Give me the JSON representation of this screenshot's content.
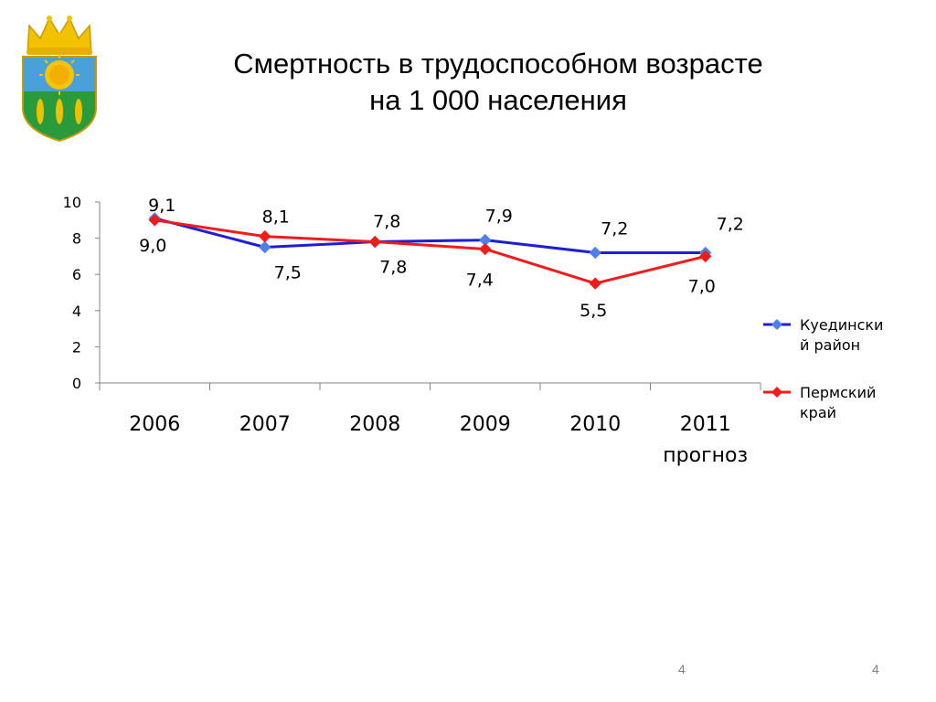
{
  "slide": {
    "title_line1": "Смертность в трудоспособном возрасте",
    "title_line2": "на 1 000 населения",
    "page_number_center": "4",
    "page_number_right": "4",
    "emblem_icon": "coat-of-arms-icon"
  },
  "chart_data": {
    "type": "line",
    "categories": [
      "2006",
      "2007",
      "2008",
      "2009",
      "2010",
      "2011 прогноз"
    ],
    "category_lines": [
      [
        "2006"
      ],
      [
        "2007"
      ],
      [
        "2008"
      ],
      [
        "2009"
      ],
      [
        "2010"
      ],
      [
        "2011",
        "прогноз"
      ]
    ],
    "y_ticks": [
      "0",
      "2",
      "4",
      "6",
      "8",
      "10"
    ],
    "ylim": [
      0,
      10
    ],
    "grid": false,
    "legend_position": "right",
    "series": [
      {
        "name": "Куединский район",
        "legend_lines": [
          "Куедински",
          "й район"
        ],
        "color": "#1f1fd0",
        "marker_color": "#4f7fe8",
        "values": [
          9.1,
          7.5,
          7.8,
          7.9,
          7.2,
          7.2
        ],
        "labels": [
          "9,1",
          "7,5",
          "7,8",
          "7,9",
          "7,2",
          "7,2"
        ]
      },
      {
        "name": "Пермский край",
        "legend_lines": [
          "Пермский",
          "край"
        ],
        "color": "#ee1c1c",
        "marker_color": "#ee1c1c",
        "values": [
          9.0,
          8.1,
          7.8,
          7.4,
          5.5,
          7.0
        ],
        "labels": [
          "9,0",
          "8,1",
          "7,8",
          "7,4",
          "5,5",
          "7,0"
        ]
      }
    ]
  }
}
